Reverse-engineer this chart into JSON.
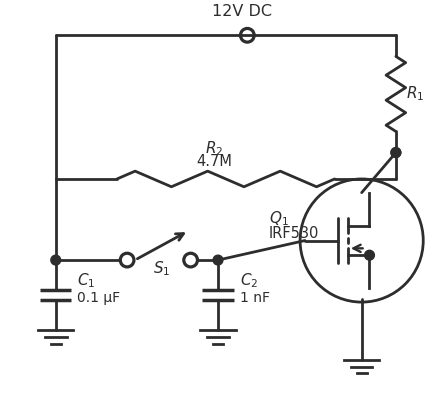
{
  "bg_color": "#ffffff",
  "line_color": "#2d2d2d",
  "line_width": 2.0,
  "title": "12V DC",
  "R2_val": "4.7M",
  "Q1_val": "IRF530",
  "C1_val": "0.1 μF",
  "C2_val": "1 nF"
}
